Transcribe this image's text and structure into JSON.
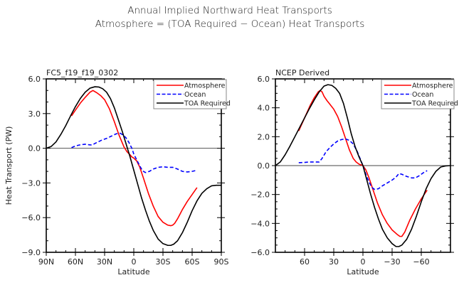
{
  "figure": {
    "title_line1": "Annual Implied Northward Heat Transports",
    "title_line2": "Atmosphere = (TOA Required − Ocean) Heat Transports"
  },
  "chart_data": [
    {
      "type": "line",
      "title": "FC5_f19_f19_0302",
      "xlabel": "Latitude",
      "ylabel": "Heat Transport (PW)",
      "xlim": [
        90,
        -90
      ],
      "ylim": [
        -9.0,
        6.0
      ],
      "x_ticks": [
        90,
        60,
        30,
        0,
        -30,
        -60,
        -90
      ],
      "x_tick_labels": [
        "90N",
        "60N",
        "30N",
        "0",
        "30S",
        "60S",
        "90S"
      ],
      "x_minor_step": 10,
      "y_ticks": [
        6.0,
        3.0,
        0.0,
        -3.0,
        -6.0,
        -9.0
      ],
      "y_tick_labels": [
        "6.0",
        "3.0",
        "0.0",
        "−3.0",
        "−6.0",
        "−9.0"
      ],
      "y_minor_step": 1.0,
      "zero_line": true,
      "legend": {
        "position": "top-right",
        "entries": [
          "Atmosphere",
          "Ocean",
          "TOA Required"
        ]
      },
      "series": [
        {
          "name": "Atmosphere",
          "color": "#ff0000",
          "dash": "solid",
          "x": [
            64,
            60,
            55,
            50,
            45,
            42,
            38,
            34,
            30,
            25,
            20,
            15,
            10,
            7,
            4,
            2,
            0,
            -3,
            -6,
            -10,
            -15,
            -20,
            -25,
            -30,
            -35,
            -38,
            -40,
            -42,
            -45,
            -50,
            -55,
            -60,
            -65
          ],
          "y": [
            2.8,
            3.3,
            3.9,
            4.4,
            4.85,
            5.0,
            4.8,
            4.55,
            4.2,
            3.4,
            2.3,
            1.1,
            0.1,
            -0.3,
            -0.55,
            -0.75,
            -0.85,
            -1.1,
            -1.6,
            -2.6,
            -3.9,
            -5.0,
            -5.9,
            -6.4,
            -6.65,
            -6.7,
            -6.65,
            -6.5,
            -6.1,
            -5.3,
            -4.6,
            -4.0,
            -3.4
          ]
        },
        {
          "name": "Ocean",
          "color": "#0000ff",
          "dash": "dashed",
          "x": [
            64,
            60,
            55,
            50,
            46,
            43,
            38,
            33,
            28,
            23,
            18,
            14,
            11,
            8,
            5,
            2,
            0,
            -3,
            -6,
            -9,
            -12,
            -16,
            -20,
            -25,
            -30,
            -35,
            -40,
            -45,
            -50,
            -55,
            -60,
            -65
          ],
          "y": [
            0.05,
            0.2,
            0.3,
            0.35,
            0.3,
            0.28,
            0.5,
            0.7,
            0.85,
            1.05,
            1.25,
            1.3,
            1.15,
            0.9,
            0.5,
            0.0,
            -0.5,
            -1.0,
            -1.5,
            -1.95,
            -2.1,
            -2.0,
            -1.8,
            -1.65,
            -1.6,
            -1.65,
            -1.65,
            -1.8,
            -2.0,
            -2.05,
            -2.0,
            -1.9
          ]
        },
        {
          "name": "TOA Required",
          "color": "#000000",
          "dash": "solid",
          "x": [
            90,
            85,
            80,
            75,
            70,
            65,
            60,
            55,
            50,
            45,
            40,
            36,
            32,
            28,
            24,
            20,
            16,
            12,
            8,
            4,
            0,
            -4,
            -8,
            -12,
            -16,
            -20,
            -25,
            -30,
            -35,
            -38,
            -41,
            -45,
            -50,
            -55,
            -60,
            -65,
            -70,
            -75,
            -80,
            -85,
            -90
          ],
          "y": [
            0.0,
            0.15,
            0.55,
            1.2,
            1.95,
            2.8,
            3.6,
            4.3,
            4.85,
            5.2,
            5.32,
            5.3,
            5.15,
            4.85,
            4.3,
            3.5,
            2.5,
            1.5,
            0.4,
            -0.7,
            -1.9,
            -3.1,
            -4.3,
            -5.35,
            -6.3,
            -7.1,
            -7.85,
            -8.25,
            -8.4,
            -8.4,
            -8.3,
            -8.0,
            -7.3,
            -6.4,
            -5.4,
            -4.55,
            -3.9,
            -3.5,
            -3.25,
            -3.2,
            -3.2
          ]
        }
      ]
    },
    {
      "type": "line",
      "title": "NCEP Derived",
      "xlabel": "Latitude",
      "ylabel": "",
      "xlim": [
        90,
        -90
      ],
      "ylim": [
        -6.0,
        6.0
      ],
      "x_ticks": [
        60,
        30,
        0,
        -30,
        -60
      ],
      "x_tick_labels": [
        "60",
        "30",
        "0",
        "−30",
        "−60"
      ],
      "x_minor_step": 10,
      "y_ticks": [
        6.0,
        4.0,
        2.0,
        0.0,
        -2.0,
        -4.0,
        -6.0
      ],
      "y_tick_labels": [
        "6.0",
        "4.0",
        "2.0",
        "0.0",
        "−2.0",
        "−4.0",
        "−6.0"
      ],
      "y_minor_step": 0.5,
      "zero_line": true,
      "legend": {
        "position": "top-right",
        "entries": [
          "Atmosphere",
          "Ocean",
          "TOA Required"
        ]
      },
      "series": [
        {
          "name": "Atmosphere",
          "color": "#ff0000",
          "dash": "solid",
          "x": [
            66,
            62,
            58,
            54,
            50,
            46,
            44,
            42,
            40,
            37,
            34,
            30,
            26,
            22,
            18,
            14,
            10,
            7,
            4,
            2,
            0,
            -3,
            -6,
            -10,
            -15,
            -20,
            -25,
            -30,
            -35,
            -38,
            -40,
            -43,
            -48,
            -54,
            -60,
            -66
          ],
          "y": [
            2.4,
            3.0,
            3.6,
            4.2,
            4.7,
            5.1,
            5.2,
            5.1,
            4.8,
            4.5,
            4.25,
            3.9,
            3.4,
            2.7,
            1.9,
            1.1,
            0.5,
            0.25,
            0.1,
            0.05,
            0.0,
            -0.3,
            -0.8,
            -1.6,
            -2.6,
            -3.4,
            -4.0,
            -4.45,
            -4.75,
            -4.9,
            -4.9,
            -4.6,
            -3.8,
            -3.0,
            -2.3,
            -1.7
          ]
        },
        {
          "name": "Ocean",
          "color": "#0000ff",
          "dash": "dashed",
          "x": [
            66,
            60,
            55,
            50,
            45,
            42,
            38,
            34,
            30,
            26,
            22,
            18,
            14,
            10,
            6,
            3,
            0,
            -3,
            -6,
            -9,
            -12,
            -16,
            -20,
            -25,
            -30,
            -34,
            -37,
            -40,
            -45,
            -50,
            -54,
            -58,
            -62,
            -66
          ],
          "y": [
            0.2,
            0.22,
            0.25,
            0.25,
            0.25,
            0.5,
            0.95,
            1.25,
            1.5,
            1.7,
            1.8,
            1.85,
            1.75,
            1.5,
            1.0,
            0.5,
            0.0,
            -0.6,
            -1.1,
            -1.5,
            -1.65,
            -1.6,
            -1.4,
            -1.2,
            -1.0,
            -0.8,
            -0.55,
            -0.6,
            -0.75,
            -0.85,
            -0.85,
            -0.7,
            -0.5,
            -0.35
          ]
        },
        {
          "name": "TOA Required",
          "color": "#000000",
          "dash": "solid",
          "x": [
            90,
            85,
            80,
            75,
            70,
            65,
            60,
            55,
            50,
            45,
            40,
            36,
            32,
            28,
            24,
            20,
            16,
            12,
            8,
            4,
            0,
            -4,
            -8,
            -12,
            -16,
            -20,
            -25,
            -30,
            -34,
            -37,
            -40,
            -45,
            -50,
            -55,
            -60,
            -65,
            -70,
            -75,
            -80,
            -85,
            -90
          ],
          "y": [
            0.0,
            0.25,
            0.75,
            1.35,
            2.0,
            2.65,
            3.3,
            3.95,
            4.55,
            5.1,
            5.5,
            5.6,
            5.55,
            5.35,
            5.0,
            4.3,
            3.3,
            2.2,
            1.3,
            0.6,
            0.0,
            -1.0,
            -2.0,
            -2.9,
            -3.7,
            -4.4,
            -5.0,
            -5.4,
            -5.6,
            -5.6,
            -5.5,
            -5.1,
            -4.4,
            -3.5,
            -2.5,
            -1.6,
            -0.9,
            -0.4,
            -0.1,
            -0.02,
            0.0
          ]
        }
      ]
    }
  ]
}
